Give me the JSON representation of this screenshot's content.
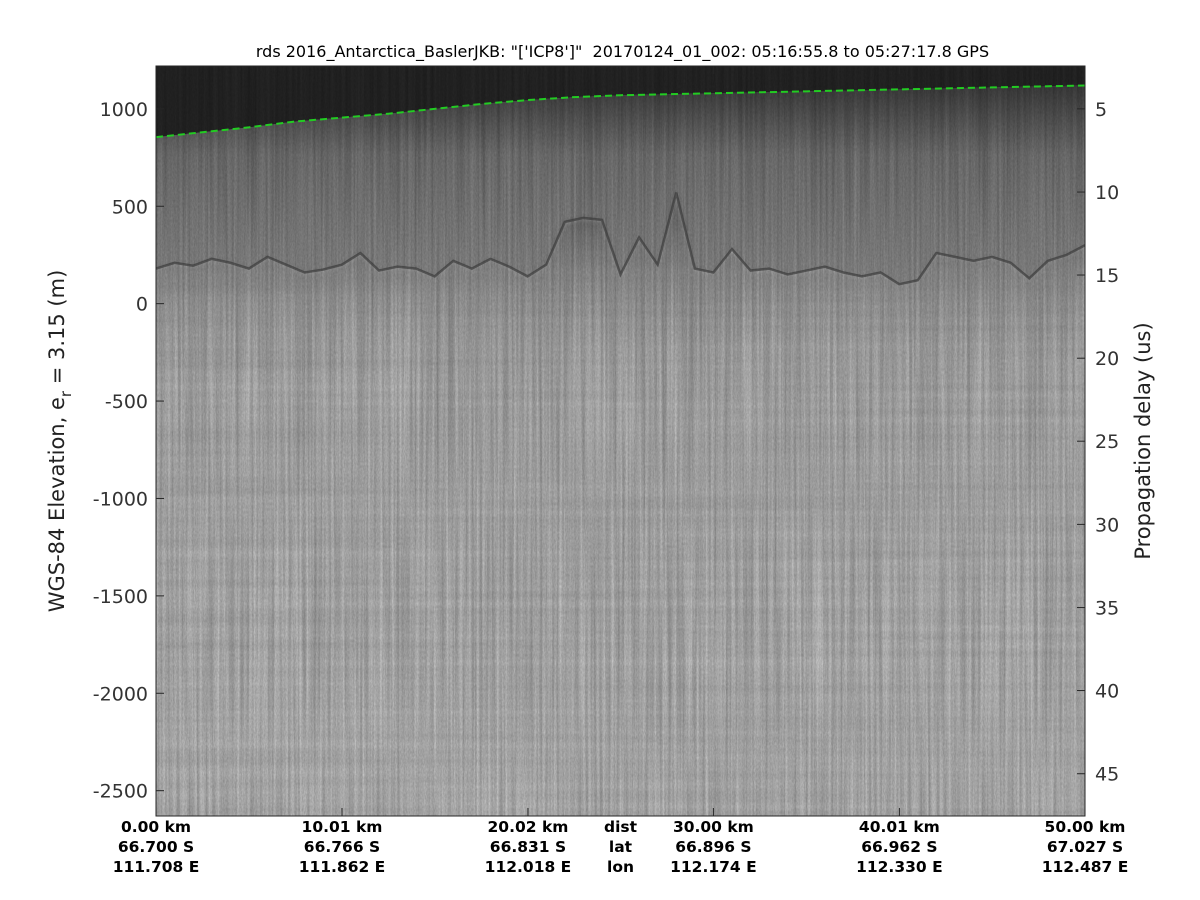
{
  "title": "rds 2016_Antarctica_BaslerJKB: \"['ICP8']\"  20170124_01_002: 05:16:55.8 to 05:27:17.8 GPS",
  "chart_data": {
    "type": "heatmap",
    "title": "rds 2016_Antarctica_BaslerJKB: \"['ICP8']\"  20170124_01_002: 05:16:55.8 to 05:27:17.8 GPS",
    "ylabel": "WGS-84 Elevation, e",
    "ylabel_sub": "r",
    "ylabel_suffix": " = 3.15 (m)",
    "y2label": "Propagation delay (us)",
    "ylim": [
      -2630,
      1220
    ],
    "yticks": [
      1000,
      500,
      0,
      -500,
      -1000,
      -1500,
      -2000,
      -2500
    ],
    "ytick_labels": [
      "1000",
      "500",
      "0",
      "-500",
      "-1000",
      "-1500",
      "-2000",
      "-2500"
    ],
    "y2ticks": [
      5,
      10,
      15,
      20,
      25,
      30,
      35,
      40,
      45
    ],
    "y2ticks_elevation": [
      1000,
      573,
      147,
      -280,
      -706,
      -1133,
      -1560,
      -1986,
      -2413
    ],
    "xlim": [
      0,
      50
    ],
    "x_columns": [
      {
        "dist": "0.00 km",
        "lat": "66.700 S",
        "lon": "111.708 E",
        "x": 0
      },
      {
        "dist": "10.01 km",
        "lat": "66.766 S",
        "lon": "111.862 E",
        "x": 10.01
      },
      {
        "dist": "20.02 km",
        "lat": "66.831 S",
        "lon": "112.018 E",
        "x": 20.02
      },
      {
        "dist": "dist",
        "lat": "lat",
        "lon": "lon",
        "x": 25.0,
        "is_legend": true
      },
      {
        "dist": "30.00 km",
        "lat": "66.896 S",
        "lon": "112.174 E",
        "x": 30.0
      },
      {
        "dist": "40.01 km",
        "lat": "66.962 S",
        "lon": "112.330 E",
        "x": 40.01
      },
      {
        "dist": "50.00 km",
        "lat": "67.027 S",
        "lon": "112.487 E",
        "x": 50.0
      }
    ],
    "surface_line": {
      "color": "#22cc22",
      "x": [
        0,
        2.5,
        5,
        7.5,
        10,
        12.5,
        15,
        17.5,
        20,
        22.5,
        25,
        27.5,
        30,
        32.5,
        35,
        37.5,
        40,
        42.5,
        45,
        47.5,
        50
      ],
      "y": [
        855,
        880,
        905,
        935,
        955,
        975,
        1000,
        1025,
        1045,
        1060,
        1070,
        1075,
        1080,
        1085,
        1090,
        1095,
        1100,
        1105,
        1110,
        1115,
        1120
      ]
    },
    "bed": {
      "x": [
        0,
        1,
        2,
        3,
        4,
        5,
        6,
        7,
        8,
        9,
        10,
        11,
        12,
        13,
        14,
        15,
        16,
        17,
        18,
        19,
        20,
        21,
        22,
        23,
        24,
        25,
        26,
        27,
        28,
        29,
        30,
        31,
        32,
        33,
        34,
        35,
        36,
        37,
        38,
        39,
        40,
        41,
        42,
        43,
        44,
        45,
        46,
        47,
        48,
        49,
        50
      ],
      "y": [
        180,
        210,
        195,
        230,
        210,
        180,
        240,
        200,
        160,
        175,
        200,
        260,
        170,
        190,
        180,
        140,
        220,
        180,
        230,
        190,
        140,
        200,
        420,
        440,
        430,
        150,
        340,
        200,
        570,
        180,
        160,
        280,
        170,
        180,
        150,
        170,
        190,
        160,
        140,
        160,
        100,
        120,
        260,
        240,
        220,
        240,
        210,
        130,
        220,
        250,
        300
      ]
    },
    "colormap": "gray",
    "grid": false
  }
}
